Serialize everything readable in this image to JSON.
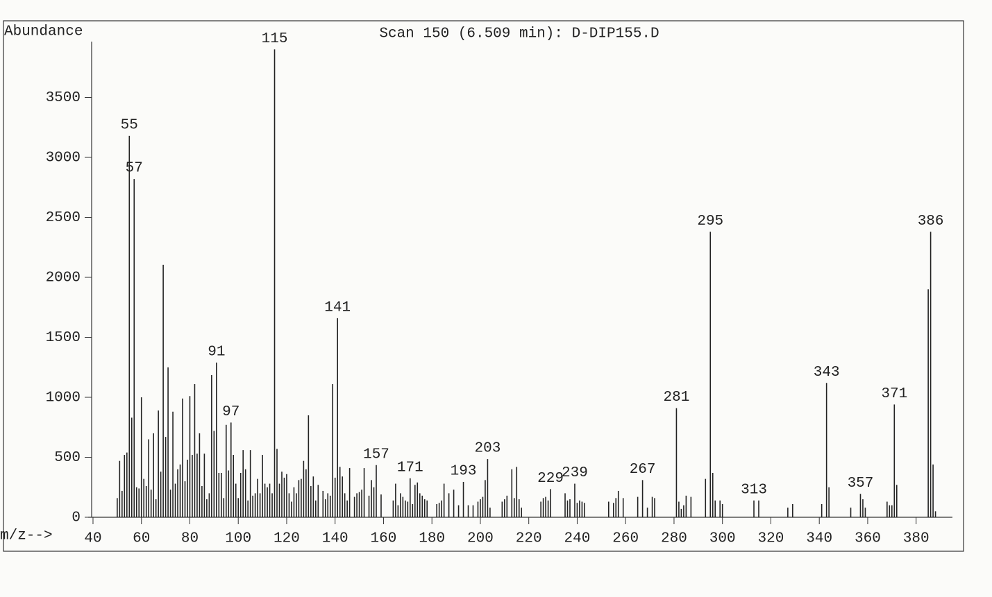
{
  "chart_data": {
    "type": "stem",
    "title": "Scan 150 (6.509 min): D-DIP155.D",
    "y_label": "Abundance",
    "x_label": "m/z-->",
    "color": "#222222",
    "xlim": [
      38,
      395
    ],
    "ylim": [
      0,
      4000
    ],
    "xticks": [
      40,
      60,
      80,
      100,
      120,
      140,
      160,
      180,
      200,
      220,
      240,
      260,
      280,
      300,
      320,
      340,
      360,
      380
    ],
    "yticks": [
      0,
      500,
      1000,
      1500,
      2000,
      2500,
      3000,
      3500
    ],
    "labeled_peaks": [
      55,
      57,
      91,
      97,
      115,
      141,
      157,
      171,
      193,
      203,
      229,
      239,
      267,
      281,
      295,
      313,
      343,
      357,
      371,
      386
    ],
    "x": [
      50,
      51,
      52,
      53,
      54,
      55,
      56,
      57,
      58,
      59,
      60,
      61,
      62,
      63,
      64,
      65,
      66,
      67,
      68,
      69,
      70,
      71,
      72,
      73,
      74,
      75,
      76,
      77,
      78,
      79,
      80,
      81,
      82,
      83,
      84,
      85,
      86,
      87,
      88,
      89,
      90,
      91,
      92,
      93,
      94,
      95,
      96,
      97,
      98,
      99,
      100,
      101,
      102,
      103,
      104,
      105,
      106,
      107,
      108,
      109,
      110,
      111,
      112,
      113,
      114,
      115,
      116,
      117,
      118,
      119,
      120,
      121,
      122,
      123,
      124,
      125,
      126,
      127,
      128,
      129,
      130,
      131,
      132,
      133,
      135,
      136,
      137,
      138,
      139,
      140,
      141,
      142,
      143,
      144,
      145,
      146,
      148,
      149,
      150,
      151,
      152,
      154,
      155,
      156,
      157,
      159,
      164,
      165,
      166,
      167,
      168,
      169,
      170,
      171,
      172,
      173,
      174,
      175,
      176,
      177,
      178,
      182,
      183,
      184,
      185,
      187,
      189,
      191,
      193,
      195,
      197,
      199,
      200,
      201,
      202,
      203,
      204,
      209,
      210,
      211,
      213,
      214,
      215,
      216,
      217,
      225,
      226,
      227,
      228,
      229,
      235,
      236,
      237,
      239,
      240,
      241,
      242,
      243,
      253,
      255,
      256,
      257,
      259,
      265,
      267,
      269,
      271,
      272,
      281,
      282,
      283,
      284,
      285,
      287,
      293,
      295,
      296,
      297,
      299,
      300,
      313,
      315,
      327,
      329,
      341,
      343,
      344,
      353,
      357,
      358,
      359,
      368,
      369,
      370,
      371,
      372,
      385,
      386,
      387,
      388
    ],
    "values": [
      160,
      470,
      220,
      520,
      540,
      3180,
      830,
      2820,
      250,
      240,
      1000,
      320,
      260,
      650,
      230,
      700,
      150,
      890,
      380,
      2105,
      670,
      1250,
      230,
      880,
      280,
      400,
      440,
      990,
      300,
      480,
      1010,
      520,
      1110,
      530,
      700,
      260,
      530,
      150,
      200,
      1185,
      720,
      1290,
      370,
      370,
      160,
      770,
      390,
      790,
      520,
      280,
      160,
      370,
      560,
      400,
      140,
      560,
      180,
      200,
      320,
      200,
      520,
      280,
      250,
      280,
      200,
      3900,
      570,
      280,
      380,
      330,
      360,
      200,
      130,
      250,
      200,
      310,
      320,
      470,
      400,
      850,
      260,
      340,
      140,
      270,
      220,
      150,
      200,
      180,
      1110,
      330,
      1660,
      420,
      340,
      200,
      140,
      410,
      170,
      200,
      210,
      230,
      410,
      180,
      310,
      250,
      435,
      190,
      140,
      280,
      100,
      200,
      170,
      140,
      130,
      325,
      110,
      270,
      290,
      200,
      180,
      150,
      140,
      110,
      120,
      140,
      280,
      200,
      230,
      100,
      295,
      100,
      100,
      130,
      150,
      170,
      310,
      485,
      80,
      130,
      150,
      180,
      400,
      160,
      420,
      150,
      80,
      130,
      160,
      170,
      140,
      235,
      200,
      140,
      150,
      280,
      120,
      140,
      130,
      120,
      130,
      120,
      160,
      220,
      160,
      170,
      310,
      80,
      170,
      160,
      910,
      130,
      70,
      100,
      180,
      170,
      320,
      2380,
      370,
      140,
      140,
      110,
      140,
      140,
      80,
      110,
      110,
      1120,
      250,
      80,
      195,
      150,
      80,
      130,
      100,
      100,
      940,
      270,
      1900,
      2380,
      440,
      50
    ]
  }
}
